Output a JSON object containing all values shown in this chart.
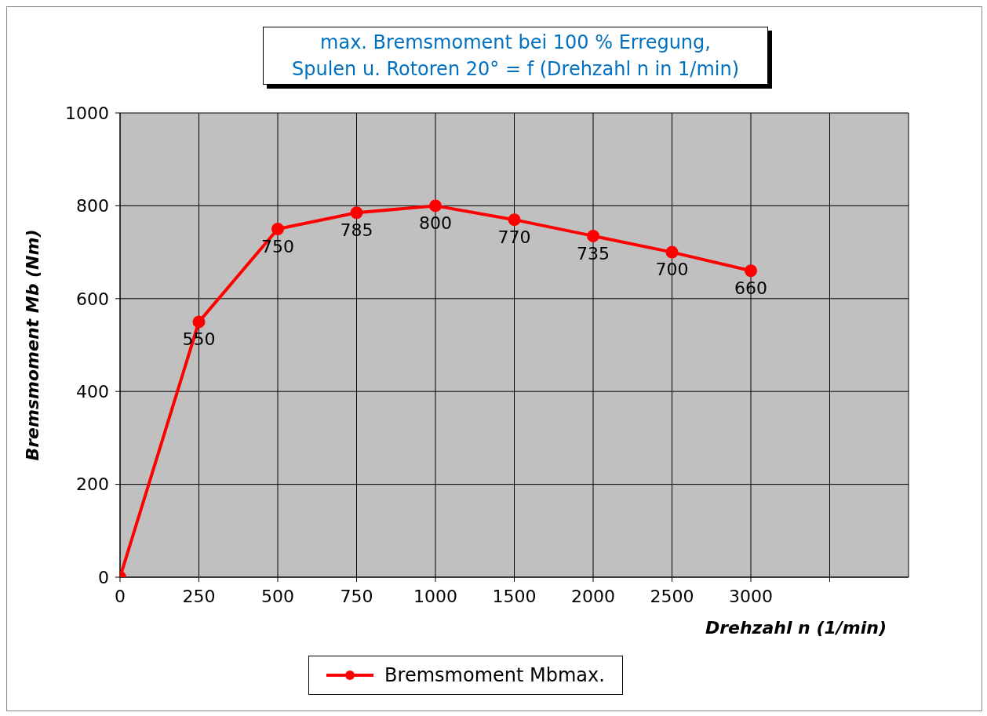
{
  "chart_data": {
    "type": "line",
    "title": "max. Bremsmoment bei 100 % Erregung,\nSpulen u. Rotoren 20° = f (Drehzahl n in 1/min)",
    "xlabel": "Drehzahl n (1/min)",
    "ylabel": "Bremsmoment Mb (Nm)",
    "categories": [
      "0",
      "250",
      "500",
      "750",
      "1000",
      "1500",
      "2000",
      "2500",
      "3000",
      null
    ],
    "series": [
      {
        "name": "Bremsmoment Mbmax.",
        "color": "#ff0000",
        "values": [
          0,
          550,
          750,
          785,
          800,
          770,
          735,
          700,
          660,
          null
        ],
        "value_labels": [
          null,
          "550",
          "750",
          "785",
          "800",
          "770",
          "735",
          "700",
          "660",
          null
        ]
      }
    ],
    "ylim": [
      0,
      1000
    ],
    "yticks": [
      0,
      200,
      400,
      600,
      800,
      1000
    ],
    "grid": true,
    "legend": "bottom",
    "marker": "circle"
  }
}
